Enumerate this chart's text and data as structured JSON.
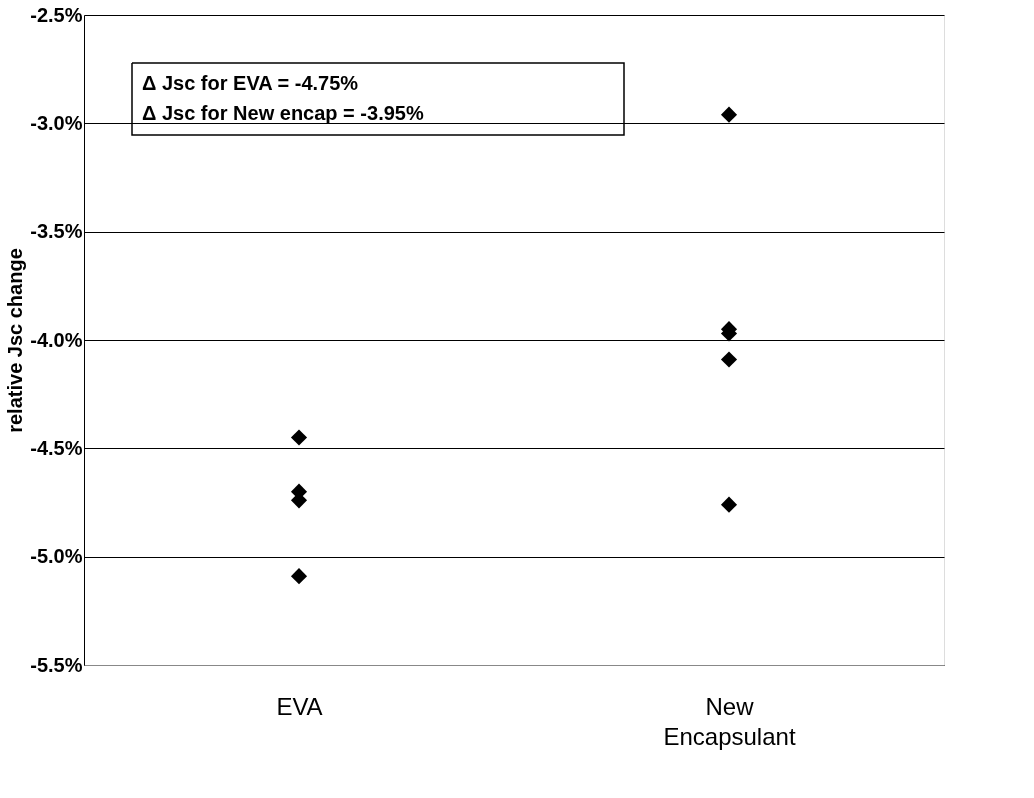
{
  "chart_data": {
    "type": "scatter",
    "ylabel": "relative Jsc change",
    "categories": [
      "EVA",
      "New Encapsulant"
    ],
    "series": [
      {
        "color": "#000000",
        "x": [
          "EVA",
          "EVA",
          "EVA",
          "EVA",
          "New Encapsulant",
          "New Encapsulant",
          "New Encapsulant",
          "New Encapsulant",
          "New Encapsulant"
        ],
        "values": [
          -4.45,
          -4.7,
          -4.74,
          -5.09,
          -2.96,
          -3.95,
          -3.97,
          -4.09,
          -4.76
        ]
      }
    ],
    "marker": "diamond",
    "grid": "y",
    "legend": false,
    "ylim": [
      -5.5,
      -2.5
    ],
    "yticks": [
      {
        "value": -5.5,
        "label": "-5.5%"
      },
      {
        "value": -5.0,
        "label": "-5.0%"
      },
      {
        "value": -4.5,
        "label": "-4.5%"
      },
      {
        "value": -4.0,
        "label": "-4.0%"
      },
      {
        "value": -3.5,
        "label": "-3.5%"
      },
      {
        "value": -3.0,
        "label": "-3.0%"
      },
      {
        "value": -2.5,
        "label": "-2.5%"
      }
    ],
    "annotations": [
      "Δ Jsc for EVA = -4.75%",
      "Δ Jsc for New encap = -3.95%"
    ]
  }
}
